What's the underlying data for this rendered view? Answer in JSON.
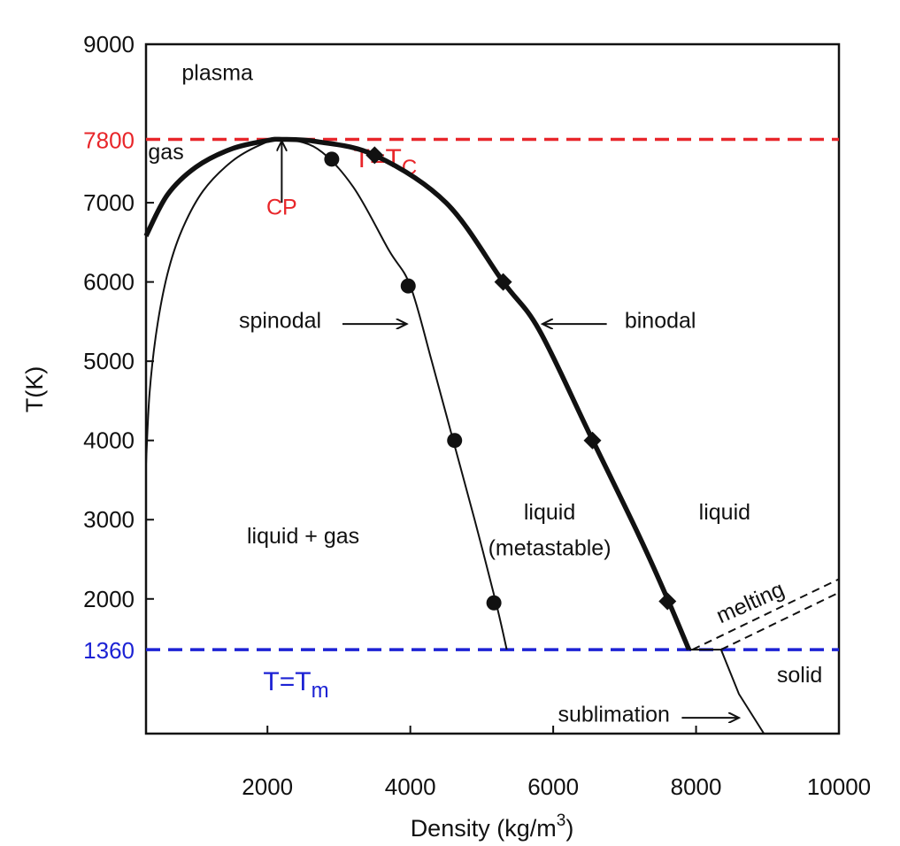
{
  "chart_data": {
    "type": "line",
    "xlabel": "Density (kg/m",
    "xlabel_sup": "3",
    "xlabel_end": ")",
    "ylabel": "T(K)",
    "xlim": [
      300,
      10000
    ],
    "ylim": [
      300,
      9000
    ],
    "x_ticks": [
      2000,
      4000,
      6000,
      8000,
      10000
    ],
    "y_ticks": [
      2000,
      3000,
      4000,
      5000,
      6000,
      7000,
      9000
    ],
    "grid": false,
    "colors": {
      "red": "#e8262a",
      "blue": "#1c22d4",
      "black": "#111111"
    },
    "reference_lines": [
      {
        "id": "tc",
        "y": 7800,
        "tick_label": "7800",
        "label": "T=T",
        "label_sub": "C",
        "label_x": 3650,
        "label_y": 7450,
        "color": "#e8262a"
      },
      {
        "id": "tm",
        "y": 1360,
        "tick_label": "1360",
        "label": "T=T",
        "label_sub": "m",
        "label_x": 2400,
        "label_y": 850,
        "color": "#1c22d4"
      }
    ],
    "series": [
      {
        "id": "binodal",
        "name": "binodal",
        "style": "thick",
        "x": [
          300,
          600,
          1000,
          1500,
          2000,
          2200,
          2700,
          3500,
          4500,
          5300,
          5800,
          6500,
          7200,
          7600,
          7900
        ],
        "y": [
          6580,
          7100,
          7450,
          7680,
          7785,
          7800,
          7770,
          7600,
          7000,
          6000,
          5400,
          4100,
          2800,
          2000,
          1360
        ],
        "markers": [
          [
            3500,
            7600
          ],
          [
            5300,
            6000
          ],
          [
            6550,
            4000
          ],
          [
            7600,
            1970
          ]
        ],
        "marker": "diamond"
      },
      {
        "id": "spinodal",
        "name": "spinodal",
        "style": "thin",
        "x": [
          300,
          350,
          450,
          600,
          800,
          1100,
          1500,
          1900,
          2200,
          2700,
          3200,
          3700,
          4000,
          4300,
          4600,
          4900,
          5200,
          5350
        ],
        "y": [
          3700,
          4600,
          5400,
          6100,
          6650,
          7150,
          7520,
          7730,
          7800,
          7680,
          7200,
          6400,
          5950,
          5000,
          4000,
          3000,
          1950,
          1360
        ],
        "markers": [
          [
            2900,
            7550
          ],
          [
            3970,
            5950
          ],
          [
            4620,
            4000
          ],
          [
            5170,
            1950
          ]
        ],
        "marker": "circle"
      },
      {
        "id": "sublimation",
        "name": "sublimation",
        "style": "thin",
        "x": [
          7900,
          8350,
          8600,
          8950
        ],
        "y": [
          1360,
          1360,
          800,
          300
        ]
      },
      {
        "id": "melting1",
        "name": "melting",
        "style": "dashed",
        "x": [
          7950,
          10000
        ],
        "y": [
          1360,
          2250
        ]
      },
      {
        "id": "melting2",
        "name": "melting",
        "style": "dashed",
        "x": [
          8350,
          10000
        ],
        "y": [
          1360,
          2080
        ]
      }
    ],
    "annotations": [
      {
        "id": "plasma",
        "text": "plasma",
        "x": 800,
        "y": 8550,
        "anchor": "start"
      },
      {
        "id": "gas",
        "text": "gas",
        "x": 330,
        "y": 7550,
        "anchor": "start"
      },
      {
        "id": "cp",
        "text": "CP",
        "x": 2200,
        "y": 6850,
        "anchor": "middle",
        "color": "#e8262a",
        "size": 30
      },
      {
        "id": "spinodal",
        "text": "spinodal",
        "x": 1600,
        "y": 5420,
        "anchor": "start"
      },
      {
        "id": "binodal",
        "text": "binodal",
        "x": 7000,
        "y": 5420,
        "anchor": "start"
      },
      {
        "id": "liquid-gas",
        "text": "liquid + gas",
        "x": 2500,
        "y": 2700,
        "anchor": "middle"
      },
      {
        "id": "liquid-meta-1",
        "text": "liquid",
        "x": 5950,
        "y": 3000,
        "anchor": "middle"
      },
      {
        "id": "liquid-meta-2",
        "text": "(metastable)",
        "x": 5950,
        "y": 2550,
        "anchor": "middle"
      },
      {
        "id": "liquid",
        "text": "liquid",
        "x": 8400,
        "y": 3000,
        "anchor": "middle"
      },
      {
        "id": "melting",
        "text": "melting",
        "x": 8800,
        "y": 1870,
        "anchor": "middle",
        "rotate": -24
      },
      {
        "id": "solid",
        "text": "solid",
        "x": 9450,
        "y": 950,
        "anchor": "middle"
      },
      {
        "id": "sublimation",
        "text": "sublimation",
        "x": 6850,
        "y": 450,
        "anchor": "middle"
      }
    ],
    "arrows": [
      {
        "id": "cp-arrow",
        "from": [
          2200,
          7000
        ],
        "to": [
          2200,
          7780
        ],
        "color": "#111111"
      },
      {
        "id": "spinodal-arrow",
        "from": [
          3050,
          5470
        ],
        "to": [
          3950,
          5470
        ]
      },
      {
        "id": "binodal-arrow",
        "from": [
          6750,
          5470
        ],
        "to": [
          5850,
          5470
        ]
      },
      {
        "id": "sublimation-arrow",
        "from": [
          7800,
          500
        ],
        "to": [
          8600,
          500
        ]
      }
    ]
  }
}
